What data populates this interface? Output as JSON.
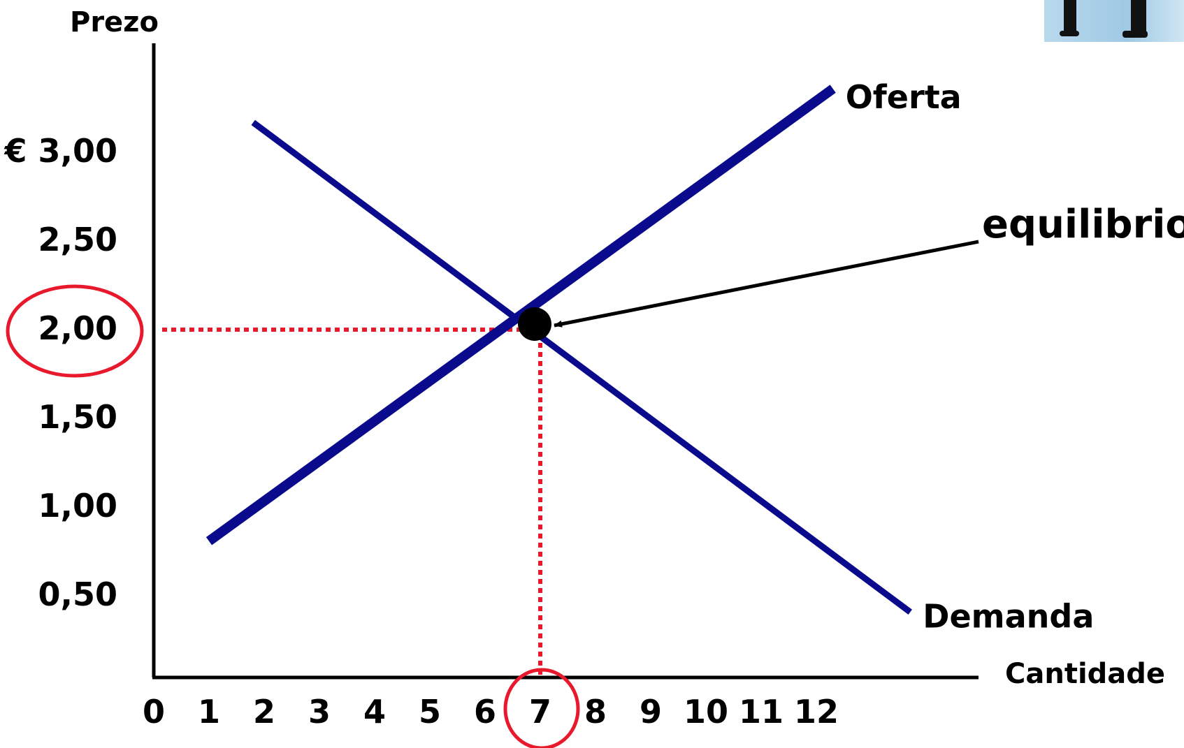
{
  "chart_data": {
    "type": "line",
    "xlabel": "Cantidade",
    "ylabel": "Prezo",
    "x_ticks": [
      "0",
      "1",
      "2",
      "3",
      "4",
      "5",
      "6",
      "7",
      "8",
      "9",
      "10",
      "11",
      "12"
    ],
    "y_ticks": [
      {
        "value": 3.0,
        "label": "€ 3,00"
      },
      {
        "value": 2.5,
        "label": "2,50"
      },
      {
        "value": 2.0,
        "label": "2,00"
      },
      {
        "value": 1.5,
        "label": "1,50"
      },
      {
        "value": 1.0,
        "label": "1,00"
      },
      {
        "value": 0.5,
        "label": "0,50"
      }
    ],
    "series": [
      {
        "name": "Oferta",
        "color": "#0a0a8c",
        "points": [
          {
            "x": 1.0,
            "y": 0.8
          },
          {
            "x": 12.3,
            "y": 3.35
          }
        ]
      },
      {
        "name": "Demanda",
        "color": "#0a0a8c",
        "points": [
          {
            "x": 1.8,
            "y": 3.16
          },
          {
            "x": 13.7,
            "y": 0.4
          }
        ]
      }
    ],
    "equilibrium": {
      "x": 7,
      "y": 2.0,
      "label": "equilibrio"
    },
    "highlight_color": "#e8192c",
    "grid": false
  }
}
